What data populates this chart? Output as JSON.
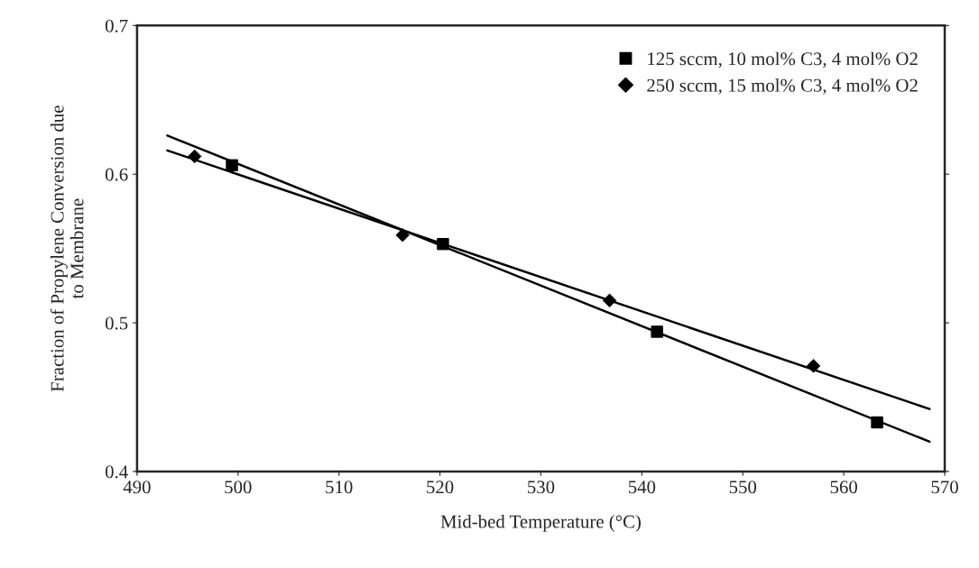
{
  "chart_data": {
    "type": "scatter",
    "xlabel": "Mid-bed Temperature (°C)",
    "ylabel": "Fraction of Propylene Conversion due\nto Membrane",
    "series": [
      {
        "name": "125 sccm, 10 mol% C3, 4 mol% O2",
        "color": "#000000",
        "marker": "square",
        "x": [
          499.4,
          520.3,
          541.5,
          563.3
        ],
        "values": [
          0.606,
          0.553,
          0.494,
          0.433
        ]
      },
      {
        "name": "250 sccm, 15 mol% C3, 4 mol% O2",
        "color": "#000000",
        "marker": "diamond",
        "x": [
          495.7,
          516.3,
          536.8,
          557.0
        ],
        "values": [
          0.612,
          0.559,
          0.515,
          0.471
        ]
      },
      {
        "type": "line",
        "color": "#000000",
        "x": [
          493,
          568.5
        ],
        "values": [
          0.626,
          0.42
        ]
      },
      {
        "type": "line",
        "color": "#000000",
        "x": [
          493,
          568.5
        ],
        "values": [
          0.616,
          0.442
        ]
      }
    ],
    "xlim": [
      490,
      570
    ],
    "xticks": [
      490,
      500,
      510,
      520,
      530,
      540,
      550,
      560,
      570
    ],
    "ylim": [
      0.4,
      0.7
    ],
    "yticks": [
      0.4,
      0.5,
      0.6,
      0.7
    ],
    "grid": false,
    "legend": "top right"
  }
}
